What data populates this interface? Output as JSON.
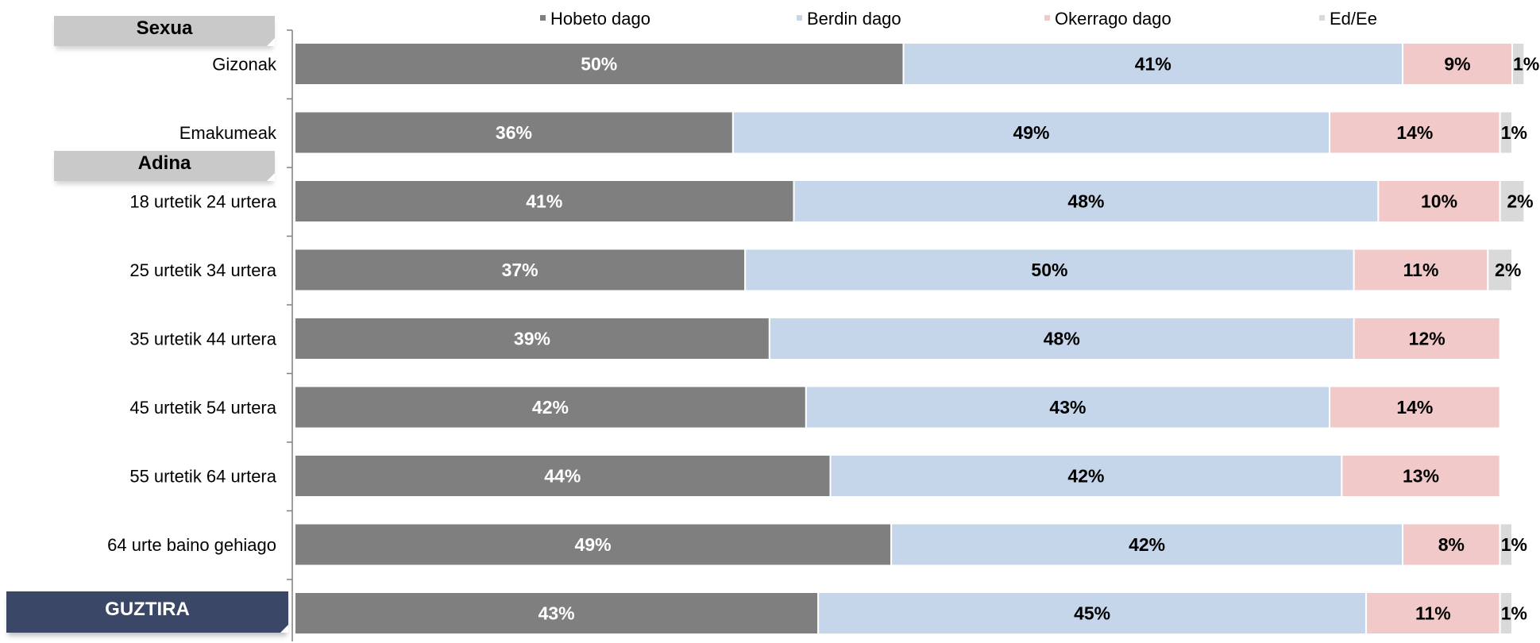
{
  "group_labels": {
    "sex": "Sexua",
    "age": "Adina",
    "total": "GUZTIRA"
  },
  "chart_data": {
    "type": "bar",
    "orientation": "horizontal",
    "stacked": true,
    "title": "",
    "xlabel": "",
    "ylabel": "",
    "xlim": [
      0,
      100
    ],
    "grid": false,
    "legend_position": "top",
    "categories": [
      "Gizonak",
      "Emakumeak",
      "18 urtetik 24 urtera",
      "25 urtetik 34 urtera",
      "35 urtetik 44 urtera",
      "45 urtetik 54 urtera",
      "55 urtetik 64 urtera",
      "64 urte baino gehiago",
      "GUZTIRA"
    ],
    "series": [
      {
        "name": "Hobeto dago",
        "color": "#7f7f7f",
        "values": [
          50,
          36,
          41,
          37,
          39,
          42,
          44,
          49,
          43
        ]
      },
      {
        "name": "Berdin dago",
        "color": "#c5d5ea",
        "values": [
          41,
          49,
          48,
          50,
          48,
          43,
          42,
          42,
          45
        ]
      },
      {
        "name": "Okerrago dago",
        "color": "#f1c9c9",
        "values": [
          9,
          14,
          10,
          11,
          12,
          14,
          13,
          8,
          11
        ]
      },
      {
        "name": "Ed/Ee",
        "color": "#d9d9d9",
        "values": [
          1,
          1,
          2,
          2,
          0,
          0,
          0,
          1,
          1
        ]
      }
    ]
  }
}
